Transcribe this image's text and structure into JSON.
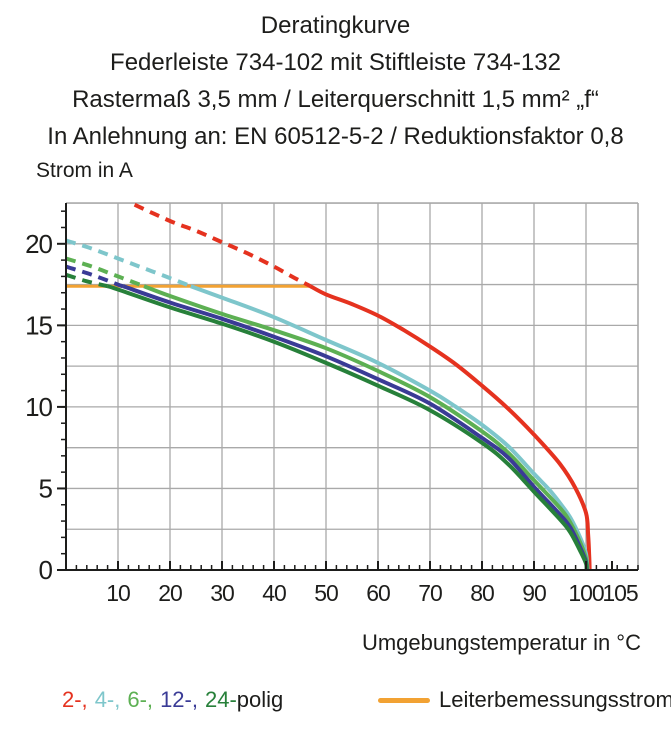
{
  "title_lines": [
    "Deratingkurve",
    "Federleiste 734-102 mit Stiftleiste 734-132",
    "Rastermaß 3,5 mm / Leiterquerschnitt 1,5 mm² „f“",
    "In Anlehnung an: EN 60512-5-2 / Reduktionsfaktor 0,8"
  ],
  "y_axis_label": "Strom in A",
  "x_axis_label": "Umgebungstemperatur in °C",
  "legend": {
    "pole_segments": [
      {
        "text": "2-,",
        "color": "#e5321f"
      },
      {
        "text": "4-,",
        "color": "#7ec6cb"
      },
      {
        "text": "6-,",
        "color": "#5db053"
      },
      {
        "text": "12-,",
        "color": "#3a3b96"
      },
      {
        "text": "24-",
        "color": "#27803a"
      },
      {
        "text": "polig",
        "color": "#1d1d1b"
      }
    ],
    "rated_current_label": "Leiterbemessungsstrom",
    "rated_current_color": "#f2a233"
  },
  "chart_data": {
    "type": "line",
    "title": "Deratingkurve Federleiste 734-102 mit Stiftleiste 734-132",
    "xlabel": "Umgebungstemperatur in °C",
    "ylabel": "Strom in A",
    "xlim": [
      0,
      110
    ],
    "ylim": [
      0,
      22.5
    ],
    "x_ticks_labeled": [
      10,
      20,
      30,
      40,
      50,
      60,
      70,
      80,
      90,
      100,
      105
    ],
    "y_ticks_labeled": [
      0,
      5,
      10,
      15,
      20
    ],
    "x_grid_step": 10,
    "y_grid_step": 2.5,
    "x_minor_tick_step": 2,
    "y_minor_tick_step": 1,
    "grid": true,
    "grid_color": "#a9a9a9",
    "axis_color": "#1d1d1b",
    "legend_position": "bottom",
    "rated_current_line": {
      "name": "Leiterbemessungsstrom",
      "value": 17.4,
      "x_start": 0,
      "x_end": 47,
      "color": "#f2a233"
    },
    "series": [
      {
        "name": "2-polig",
        "color": "#e5321f",
        "dashed_until": 47,
        "points": [
          [
            13.2,
            22.4
          ],
          [
            20,
            21.4
          ],
          [
            25,
            20.8
          ],
          [
            30,
            20.1
          ],
          [
            35,
            19.4
          ],
          [
            40,
            18.6
          ],
          [
            44,
            17.9
          ],
          [
            47,
            17.4
          ],
          [
            50,
            16.9
          ],
          [
            55,
            16.3
          ],
          [
            60,
            15.6
          ],
          [
            65,
            14.7
          ],
          [
            70,
            13.7
          ],
          [
            75,
            12.6
          ],
          [
            80,
            11.3
          ],
          [
            85,
            9.9
          ],
          [
            90,
            8.3
          ],
          [
            95,
            6.5
          ],
          [
            98,
            5.0
          ],
          [
            100,
            3.5
          ],
          [
            100.4,
            2.2
          ],
          [
            100.6,
            1.0
          ],
          [
            100.7,
            0
          ]
        ]
      },
      {
        "name": "4-polig",
        "color": "#7ec6cb",
        "dashed_until": 24,
        "points": [
          [
            0,
            20.2
          ],
          [
            5,
            19.7
          ],
          [
            10,
            19.1
          ],
          [
            15,
            18.5
          ],
          [
            20,
            17.9
          ],
          [
            24,
            17.4
          ],
          [
            30,
            16.7
          ],
          [
            40,
            15.5
          ],
          [
            50,
            14.1
          ],
          [
            60,
            12.7
          ],
          [
            70,
            11.0
          ],
          [
            75,
            10.0
          ],
          [
            80,
            8.9
          ],
          [
            85,
            7.6
          ],
          [
            90,
            5.9
          ],
          [
            93,
            4.9
          ],
          [
            95,
            4.1
          ],
          [
            97,
            3.2
          ],
          [
            99,
            1.9
          ],
          [
            100,
            1.0
          ],
          [
            100.3,
            0
          ]
        ]
      },
      {
        "name": "6-polig",
        "color": "#5db053",
        "dashed_until": 15,
        "points": [
          [
            0,
            19.1
          ],
          [
            5,
            18.6
          ],
          [
            10,
            18.0
          ],
          [
            15,
            17.4
          ],
          [
            20,
            16.8
          ],
          [
            30,
            15.7
          ],
          [
            40,
            14.7
          ],
          [
            50,
            13.6
          ],
          [
            60,
            12.2
          ],
          [
            70,
            10.6
          ],
          [
            80,
            8.5
          ],
          [
            85,
            7.2
          ],
          [
            90,
            5.5
          ],
          [
            95,
            3.8
          ],
          [
            97,
            2.9
          ],
          [
            99,
            1.6
          ],
          [
            100,
            0.7
          ],
          [
            100.2,
            0
          ]
        ]
      },
      {
        "name": "12-polig",
        "color": "#3a3b96",
        "dashed_until": 11,
        "points": [
          [
            0,
            18.6
          ],
          [
            5,
            18.1
          ],
          [
            10,
            17.5
          ],
          [
            11,
            17.4
          ],
          [
            20,
            16.4
          ],
          [
            30,
            15.4
          ],
          [
            40,
            14.3
          ],
          [
            50,
            13.1
          ],
          [
            60,
            11.7
          ],
          [
            70,
            10.2
          ],
          [
            80,
            8.1
          ],
          [
            85,
            6.9
          ],
          [
            90,
            5.1
          ],
          [
            95,
            3.4
          ],
          [
            97,
            2.6
          ],
          [
            99,
            1.3
          ],
          [
            100,
            0.5
          ],
          [
            100.15,
            0
          ]
        ]
      },
      {
        "name": "24-polig",
        "color": "#27803a",
        "dashed_until": 8,
        "points": [
          [
            0,
            18.1
          ],
          [
            4,
            17.7
          ],
          [
            8,
            17.4
          ],
          [
            10,
            17.2
          ],
          [
            20,
            16.1
          ],
          [
            30,
            15.1
          ],
          [
            40,
            14.0
          ],
          [
            50,
            12.7
          ],
          [
            60,
            11.3
          ],
          [
            70,
            9.8
          ],
          [
            80,
            7.8
          ],
          [
            85,
            6.5
          ],
          [
            90,
            4.8
          ],
          [
            95,
            3.1
          ],
          [
            97,
            2.3
          ],
          [
            99,
            1.1
          ],
          [
            100,
            0.4
          ],
          [
            100.1,
            0
          ]
        ]
      }
    ]
  }
}
